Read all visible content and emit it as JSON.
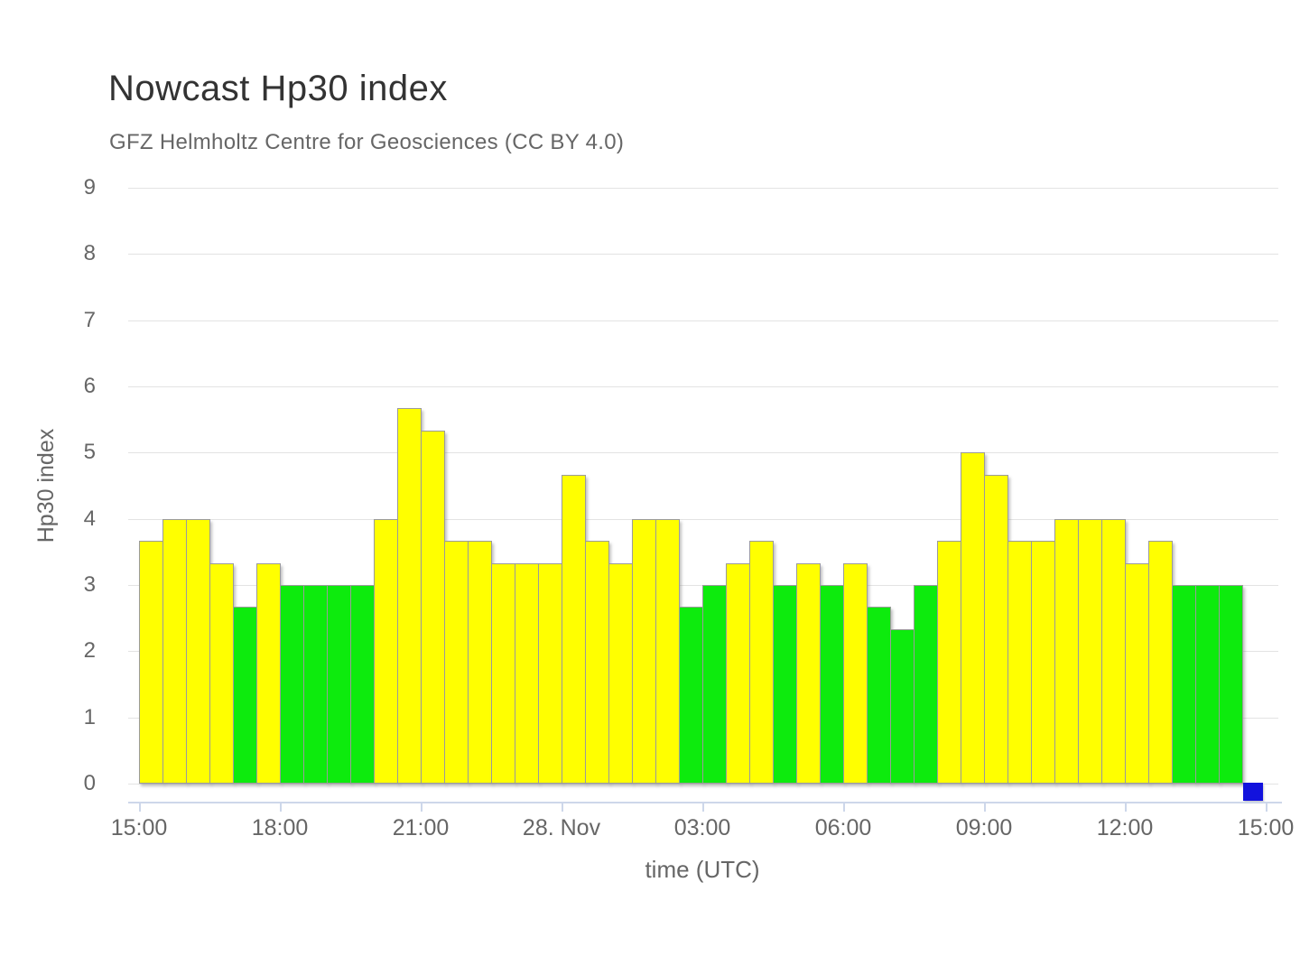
{
  "chart_data": {
    "type": "bar",
    "title": "Nowcast Hp30 index",
    "subtitle": "GFZ Helmholtz Centre for Geosciences (CC BY 4.0)",
    "ylabel": "Hp30 index",
    "xlabel": "time (UTC)",
    "ylim": [
      0,
      9
    ],
    "y_ticks": [
      0,
      1,
      2,
      3,
      4,
      5,
      6,
      7,
      8,
      9
    ],
    "grid": "horizontal-only",
    "legend_position": "none",
    "x_tick_labels": [
      "15:00",
      "18:00",
      "21:00",
      "28. Nov",
      "03:00",
      "06:00",
      "09:00",
      "12:00",
      "15:00"
    ],
    "bar_interval_minutes": 30,
    "colors": {
      "yellow": "#ffff00",
      "green": "#0deb0d",
      "blue": "#1212dd"
    },
    "bars": [
      {
        "time": "15:00",
        "value": 3.67,
        "color": "yellow"
      },
      {
        "time": "15:30",
        "value": 4.0,
        "color": "yellow"
      },
      {
        "time": "16:00",
        "value": 4.0,
        "color": "yellow"
      },
      {
        "time": "16:30",
        "value": 3.33,
        "color": "yellow"
      },
      {
        "time": "17:00",
        "value": 2.67,
        "color": "green"
      },
      {
        "time": "17:30",
        "value": 3.33,
        "color": "yellow"
      },
      {
        "time": "18:00",
        "value": 3.0,
        "color": "green"
      },
      {
        "time": "18:30",
        "value": 3.0,
        "color": "green"
      },
      {
        "time": "19:00",
        "value": 3.0,
        "color": "green"
      },
      {
        "time": "19:30",
        "value": 3.0,
        "color": "green"
      },
      {
        "time": "20:00",
        "value": 4.0,
        "color": "yellow"
      },
      {
        "time": "20:30",
        "value": 5.67,
        "color": "yellow"
      },
      {
        "time": "21:00",
        "value": 5.33,
        "color": "yellow"
      },
      {
        "time": "21:30",
        "value": 3.67,
        "color": "yellow"
      },
      {
        "time": "22:00",
        "value": 3.67,
        "color": "yellow"
      },
      {
        "time": "22:30",
        "value": 3.33,
        "color": "yellow"
      },
      {
        "time": "23:00",
        "value": 3.33,
        "color": "yellow"
      },
      {
        "time": "23:30",
        "value": 3.33,
        "color": "yellow"
      },
      {
        "time": "00:00",
        "value": 4.67,
        "color": "yellow"
      },
      {
        "time": "00:30",
        "value": 3.67,
        "color": "yellow"
      },
      {
        "time": "01:00",
        "value": 3.33,
        "color": "yellow"
      },
      {
        "time": "01:30",
        "value": 4.0,
        "color": "yellow"
      },
      {
        "time": "02:00",
        "value": 4.0,
        "color": "yellow"
      },
      {
        "time": "02:30",
        "value": 2.67,
        "color": "green"
      },
      {
        "time": "03:00",
        "value": 3.0,
        "color": "green"
      },
      {
        "time": "03:30",
        "value": 3.33,
        "color": "yellow"
      },
      {
        "time": "04:00",
        "value": 3.67,
        "color": "yellow"
      },
      {
        "time": "04:30",
        "value": 3.0,
        "color": "green"
      },
      {
        "time": "05:00",
        "value": 3.33,
        "color": "yellow"
      },
      {
        "time": "05:30",
        "value": 3.0,
        "color": "green"
      },
      {
        "time": "06:00",
        "value": 3.33,
        "color": "yellow"
      },
      {
        "time": "06:30",
        "value": 2.67,
        "color": "green"
      },
      {
        "time": "07:00",
        "value": 2.33,
        "color": "green"
      },
      {
        "time": "07:30",
        "value": 3.0,
        "color": "green"
      },
      {
        "time": "08:00",
        "value": 3.67,
        "color": "yellow"
      },
      {
        "time": "08:30",
        "value": 5.0,
        "color": "yellow"
      },
      {
        "time": "09:00",
        "value": 4.67,
        "color": "yellow"
      },
      {
        "time": "09:30",
        "value": 3.67,
        "color": "yellow"
      },
      {
        "time": "10:00",
        "value": 3.67,
        "color": "yellow"
      },
      {
        "time": "10:30",
        "value": 4.0,
        "color": "yellow"
      },
      {
        "time": "11:00",
        "value": 4.0,
        "color": "yellow"
      },
      {
        "time": "11:30",
        "value": 4.0,
        "color": "yellow"
      },
      {
        "time": "12:00",
        "value": 3.33,
        "color": "yellow"
      },
      {
        "time": "12:30",
        "value": 3.67,
        "color": "yellow"
      },
      {
        "time": "13:00",
        "value": 3.0,
        "color": "green"
      },
      {
        "time": "13:30",
        "value": 3.0,
        "color": "green"
      },
      {
        "time": "14:00",
        "value": 3.0,
        "color": "green"
      },
      {
        "time": "14:30",
        "value": 0,
        "color": "blue"
      }
    ]
  }
}
